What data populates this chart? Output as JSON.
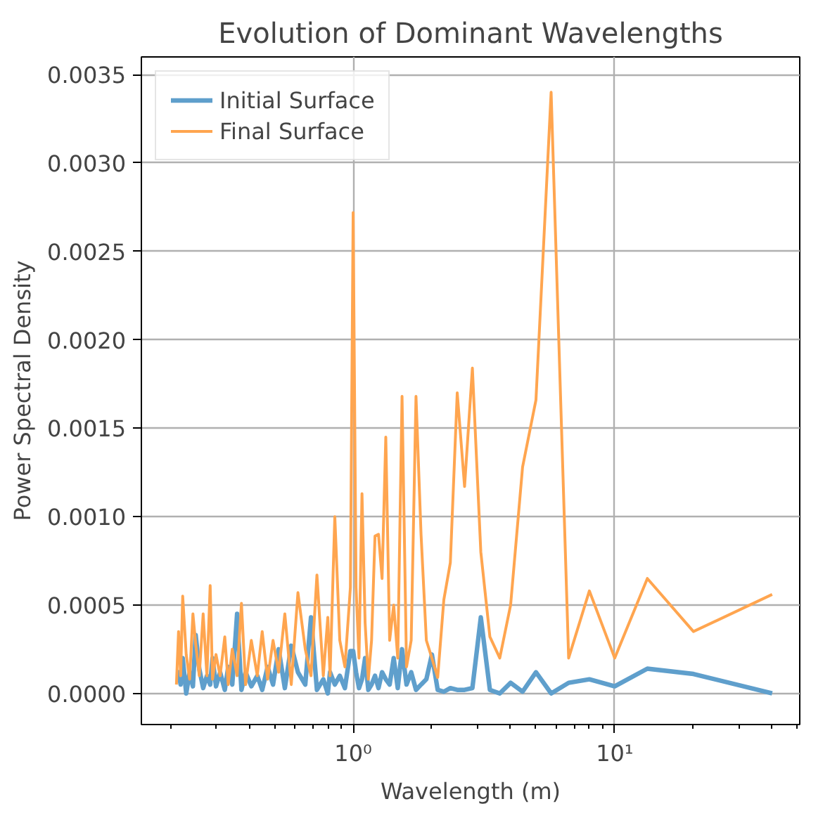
{
  "chart_data": {
    "type": "line",
    "title": "Evolution of Dominant Wavelengths",
    "xlabel": "Wavelength (m)",
    "ylabel": "Power Spectral Density",
    "log": "x",
    "grid": true,
    "legend": "top left",
    "line_style": "solid",
    "marker": "none",
    "xlim": [
      0.155,
      51
    ],
    "ylim": [
      -0.000176,
      0.0036
    ],
    "xticks": [
      {
        "value": 1,
        "label": "10⁰"
      },
      {
        "value": 10,
        "label": "10¹"
      }
    ],
    "yticks": [
      {
        "value": 0,
        "label": "0.0000"
      },
      {
        "value": 0.0005,
        "label": "0.0005"
      },
      {
        "value": 0.001,
        "label": "0.0010"
      },
      {
        "value": 0.0015,
        "label": "0.0015"
      },
      {
        "value": 0.002,
        "label": "0.0020"
      },
      {
        "value": 0.0025,
        "label": "0.0025"
      },
      {
        "value": 0.003,
        "label": "0.0030"
      },
      {
        "value": 0.0035,
        "label": "0.0035"
      }
    ],
    "x": [
      0.211,
      0.215,
      0.219,
      0.223,
      0.23,
      0.237,
      0.244,
      0.25,
      0.258,
      0.267,
      0.276,
      0.284,
      0.29,
      0.299,
      0.31,
      0.323,
      0.333,
      0.345,
      0.36,
      0.374,
      0.388,
      0.408,
      0.43,
      0.449,
      0.471,
      0.494,
      0.519,
      0.548,
      0.58,
      0.615,
      0.656,
      0.69,
      0.727,
      0.769,
      0.8,
      0.816,
      0.851,
      0.889,
      0.93,
      0.976,
      1.0,
      1.026,
      1.053,
      1.081,
      1.111,
      1.143,
      1.176,
      1.212,
      1.25,
      1.29,
      1.333,
      1.379,
      1.429,
      1.481,
      1.538,
      1.6,
      1.667,
      1.739,
      1.818,
      1.905,
      2.0,
      2.105,
      2.222,
      2.353,
      2.5,
      2.667,
      2.857,
      3.077,
      3.333,
      3.636,
      4.0,
      4.444,
      5.0,
      5.714,
      6.667,
      8.0,
      10.0,
      13.33,
      20.0,
      40.0
    ],
    "series": [
      {
        "name": "Initial Surface",
        "color": "#5f9fcc",
        "values": [
          0.00012,
          0.00012,
          5e-05,
          0.0002,
          0.0,
          0.00012,
          4e-05,
          0.00033,
          0.00014,
          3e-05,
          0.0001,
          5e-05,
          0.0002,
          4e-05,
          0.00012,
          2e-05,
          0.00015,
          5e-05,
          0.00045,
          2e-05,
          0.00012,
          4e-05,
          0.0001,
          2e-05,
          0.00015,
          5e-05,
          0.00025,
          3e-05,
          0.00027,
          0.00012,
          5e-05,
          0.00043,
          2e-05,
          8e-05,
          0.0,
          0.00012,
          5e-05,
          0.0001,
          3e-05,
          0.00024,
          0.00024,
          0.00012,
          3e-05,
          8e-05,
          0.0002,
          2e-05,
          5e-05,
          0.0001,
          3e-05,
          0.00012,
          8e-05,
          5e-05,
          0.0002,
          3e-05,
          0.00025,
          5e-05,
          0.00012,
          2e-05,
          5e-05,
          8e-05,
          0.00022,
          2e-05,
          1e-05,
          3e-05,
          2e-05,
          2e-05,
          3e-05,
          0.00043,
          2e-05,
          0.0,
          6e-05,
          1e-05,
          0.00012,
          0.0,
          6e-05,
          8e-05,
          4e-05,
          0.00014,
          0.00011,
          0.0
        ]
      },
      {
        "name": "Final Surface",
        "color": "#ffa54f",
        "values": [
          5e-05,
          0.00035,
          0.0001,
          0.00055,
          0.00022,
          8e-05,
          0.00045,
          0.00028,
          0.0001,
          0.00045,
          0.0001,
          0.00061,
          8e-05,
          0.00022,
          0.0001,
          0.00032,
          5e-05,
          0.00025,
          0.0001,
          0.00051,
          5e-05,
          0.0003,
          0.0001,
          0.00035,
          8e-05,
          0.0003,
          0.00012,
          0.00045,
          5e-05,
          0.00057,
          0.00025,
          0.0001,
          0.00067,
          0.0001,
          0.00043,
          0.0001,
          0.001,
          0.0003,
          0.00015,
          0.0006,
          0.00272,
          0.0006,
          0.0002,
          0.00113,
          0.0004,
          8e-05,
          0.0003,
          0.00089,
          0.0009,
          0.00065,
          0.00145,
          0.0003,
          0.0005,
          0.0002,
          0.00168,
          0.00015,
          0.0003,
          0.00168,
          0.0009,
          0.0003,
          0.0002,
          9e-05,
          0.00053,
          0.00074,
          0.0017,
          0.00117,
          0.00184,
          0.0008,
          0.00032,
          0.0002,
          0.0005,
          0.00128,
          0.00166,
          0.0034,
          0.0002,
          0.00058,
          0.0002,
          0.00065,
          0.00035,
          0.00056
        ]
      }
    ]
  }
}
